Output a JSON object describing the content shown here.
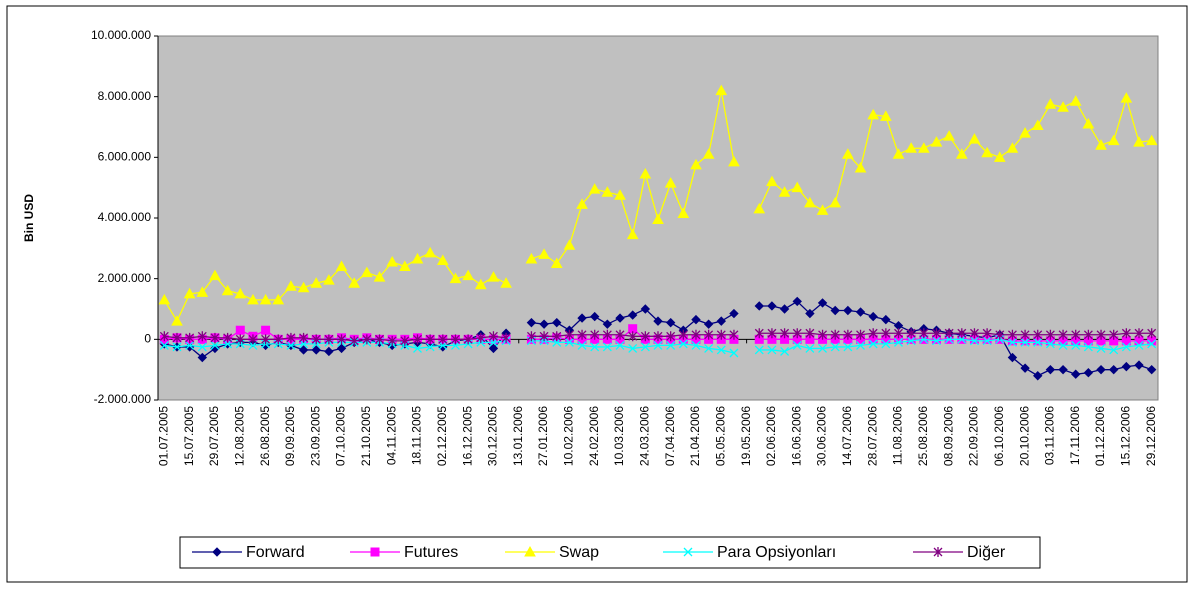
{
  "chart_data": {
    "type": "line",
    "y_label": "Bin USD",
    "categories": [
      "01.07.2005",
      null,
      "15.07.2005",
      null,
      "29.07.2005",
      null,
      "12.08.2005",
      null,
      "26.08.2005",
      null,
      "09.09.2005",
      null,
      "23.09.2005",
      null,
      "07.10.2005",
      null,
      "21.10.2005",
      null,
      "04.11.2005",
      null,
      "18.11.2005",
      null,
      "02.12.2005",
      null,
      "16.12.2005",
      null,
      "30.12.2005",
      null,
      "13.01.2006",
      null,
      "27.01.2006",
      null,
      "10.02.2006",
      null,
      "24.02.2006",
      null,
      "10.03.2006",
      null,
      "24.03.2006",
      null,
      "07.04.2006",
      null,
      "21.04.2006",
      null,
      "05.05.2006",
      null,
      "19.05.2006",
      null,
      "02.06.2006",
      null,
      "16.06.2006",
      null,
      "30.06.2006",
      null,
      "14.07.2006",
      null,
      "28.07.2006",
      null,
      "11.08.2006",
      null,
      "25.08.2006",
      null,
      "08.09.2006",
      null,
      "22.09.2006",
      null,
      "06.10.2006",
      null,
      "20.10.2006",
      null,
      "03.11.2006",
      null,
      "17.11.2006",
      null,
      "01.12.2006",
      null,
      "15.12.2006",
      null,
      "29.12.2006"
    ],
    "ylim": [
      -2000000,
      10000000
    ],
    "yticks": [
      {
        "value": -2000000,
        "label": "-2.000.000"
      },
      0,
      {
        "value": 2000000,
        "label": "2.000.000"
      },
      {
        "value": 4000000,
        "label": "4.000.000"
      },
      {
        "value": 6000000,
        "label": "6.000.000"
      },
      {
        "value": 8000000,
        "label": "8.000.000"
      },
      {
        "value": 10000000,
        "label": "10.000.000"
      }
    ],
    "grid": false,
    "legend": "bottom",
    "series": [
      {
        "name": "Forward",
        "color": "#000080",
        "marker": "diamond",
        "values": [
          -150000,
          -250000,
          -250000,
          -600000,
          -300000,
          -150000,
          -100000,
          -100000,
          -200000,
          -100000,
          -200000,
          -350000,
          -350000,
          -400000,
          -300000,
          -100000,
          0,
          -100000,
          -200000,
          -150000,
          -100000,
          -150000,
          -250000,
          -50000,
          0,
          150000,
          -300000,
          200000,
          null,
          550000,
          500000,
          550000,
          300000,
          700000,
          750000,
          500000,
          700000,
          800000,
          1000000,
          600000,
          550000,
          300000,
          650000,
          500000,
          600000,
          850000,
          null,
          1100000,
          1100000,
          1000000,
          1250000,
          850000,
          1200000,
          950000,
          950000,
          900000,
          750000,
          650000,
          450000,
          250000,
          350000,
          300000,
          200000,
          150000,
          100000,
          50000,
          150000,
          -600000,
          -950000,
          -1200000,
          -1000000,
          -1000000,
          -1150000,
          -1100000,
          -1000000,
          -1000000,
          -900000,
          -850000,
          -1000000
        ]
      },
      {
        "name": "Futures",
        "color": "#FF00FF",
        "marker": "square",
        "values": [
          0,
          50000,
          0,
          0,
          50000,
          0,
          300000,
          100000,
          300000,
          0,
          0,
          0,
          0,
          0,
          50000,
          0,
          50000,
          0,
          0,
          0,
          50000,
          0,
          0,
          0,
          0,
          0,
          0,
          0,
          null,
          0,
          0,
          50000,
          0,
          0,
          0,
          0,
          0,
          350000,
          0,
          0,
          0,
          0,
          0,
          0,
          0,
          0,
          null,
          0,
          0,
          0,
          0,
          0,
          0,
          0,
          0,
          0,
          0,
          0,
          0,
          0,
          0,
          0,
          0,
          0,
          0,
          0,
          0,
          -50000,
          -50000,
          -50000,
          -50000,
          -50000,
          -50000,
          -50000,
          -50000,
          -50000,
          -50000,
          -50000,
          -50000
        ]
      },
      {
        "name": "Swap",
        "color": "#FFFF00",
        "marker": "triangle",
        "values": [
          1300000,
          600000,
          1500000,
          1550000,
          2100000,
          1600000,
          1500000,
          1300000,
          1300000,
          1300000,
          1750000,
          1700000,
          1850000,
          1950000,
          2400000,
          1850000,
          2200000,
          2050000,
          2550000,
          2400000,
          2650000,
          2850000,
          2600000,
          2000000,
          2100000,
          1800000,
          2050000,
          1850000,
          null,
          2650000,
          2800000,
          2500000,
          3100000,
          4450000,
          4950000,
          4850000,
          4750000,
          3450000,
          5450000,
          3950000,
          5150000,
          4150000,
          5750000,
          6100000,
          8200000,
          5850000,
          null,
          4300000,
          5200000,
          4850000,
          5000000,
          4500000,
          4250000,
          4500000,
          6100000,
          5650000,
          7400000,
          7350000,
          6100000,
          6300000,
          6300000,
          6500000,
          6700000,
          6100000,
          6600000,
          6150000,
          6000000,
          6300000,
          6800000,
          7050000,
          7750000,
          7650000,
          7850000,
          7100000,
          6400000,
          6550000,
          7950000,
          6500000,
          6550000
        ]
      },
      {
        "name": "Para Opsiyonları",
        "color": "#00FFFF",
        "marker": "x",
        "values": [
          -200000,
          -250000,
          -200000,
          -250000,
          -200000,
          -150000,
          -150000,
          -200000,
          -150000,
          -150000,
          -200000,
          -150000,
          -150000,
          -100000,
          -100000,
          -100000,
          -100000,
          -100000,
          -150000,
          -200000,
          -300000,
          -250000,
          -200000,
          -200000,
          -150000,
          -100000,
          -100000,
          -50000,
          null,
          -50000,
          -50000,
          -100000,
          -100000,
          -200000,
          -250000,
          -250000,
          -200000,
          -300000,
          -250000,
          -200000,
          -200000,
          -150000,
          -200000,
          -300000,
          -350000,
          -450000,
          null,
          -350000,
          -350000,
          -400000,
          -200000,
          -300000,
          -300000,
          -250000,
          -250000,
          -200000,
          -150000,
          -150000,
          -100000,
          -50000,
          0,
          -50000,
          0,
          0,
          -50000,
          -50000,
          0,
          -100000,
          -100000,
          -100000,
          -150000,
          -200000,
          -200000,
          -250000,
          -300000,
          -350000,
          -250000,
          -200000,
          -150000
        ]
      },
      {
        "name": "Diğer",
        "color": "#800080",
        "marker": "star",
        "values": [
          100000,
          50000,
          50000,
          100000,
          50000,
          50000,
          0,
          0,
          0,
          0,
          50000,
          50000,
          0,
          0,
          0,
          -50000,
          0,
          0,
          -50000,
          -50000,
          0,
          0,
          0,
          0,
          0,
          50000,
          100000,
          50000,
          null,
          100000,
          100000,
          100000,
          150000,
          150000,
          150000,
          150000,
          150000,
          100000,
          100000,
          100000,
          100000,
          150000,
          150000,
          150000,
          150000,
          150000,
          null,
          200000,
          200000,
          200000,
          200000,
          200000,
          150000,
          150000,
          150000,
          150000,
          200000,
          200000,
          200000,
          200000,
          200000,
          200000,
          200000,
          200000,
          200000,
          200000,
          150000,
          150000,
          150000,
          150000,
          150000,
          150000,
          150000,
          150000,
          150000,
          150000,
          200000,
          200000,
          200000
        ]
      }
    ]
  }
}
